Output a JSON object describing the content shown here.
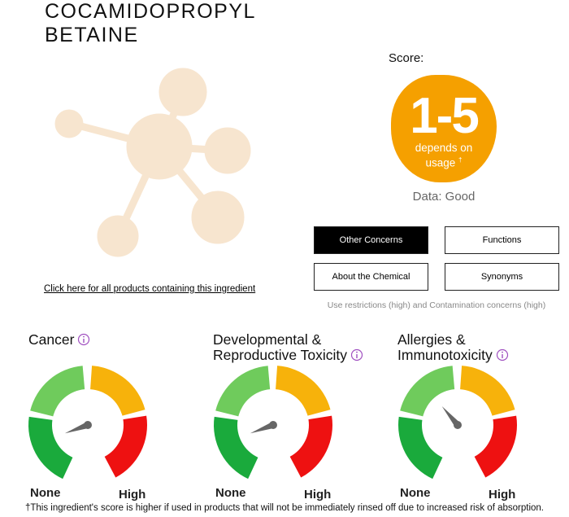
{
  "header": {
    "title_lines": [
      "COCAMIDOPROPYL",
      "BETAINE"
    ]
  },
  "products_link": "Click here for all products containing this ingredient",
  "score": {
    "label": "Score:",
    "value": "1-5",
    "note_lines": [
      "depends on",
      "usage"
    ],
    "dagger": "†",
    "data_availability": "Data: Good"
  },
  "buttons": [
    "Other Concerns",
    "Functions",
    "About the Chemical",
    "Synonyms"
  ],
  "concerns_summary": "Use restrictions (high) and Contamination concerns (high)",
  "gauges": [
    {
      "title_lines": [
        "Cancer"
      ],
      "min_label": "None",
      "max_label": "High"
    },
    {
      "title_lines": [
        "Developmental &",
        "Reproductive Toxicity"
      ],
      "min_label": "None",
      "max_label": "High"
    },
    {
      "title_lines": [
        "Allergies &",
        "Immunotoxicity"
      ],
      "min_label": "None",
      "max_label": "High"
    }
  ],
  "footnote": "†This ingredient's score is higher if used in products that will not be immediately rinsed off due to increased risk of absorption."
}
